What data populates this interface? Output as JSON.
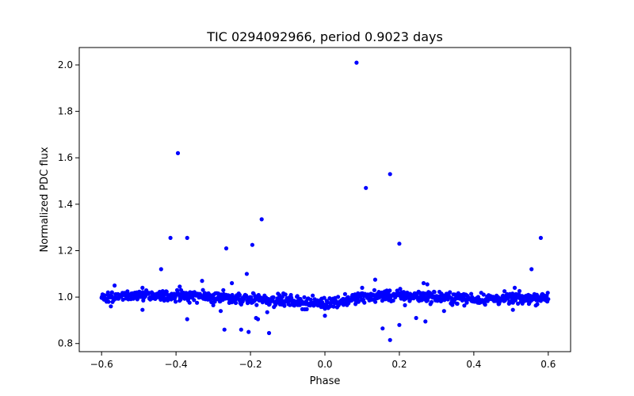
{
  "chart_data": {
    "type": "scatter",
    "title": "TIC 0294092966, period 0.9023 days",
    "xlabel": "Phase",
    "ylabel": "Normalized PDC flux",
    "xlim": [
      -0.66,
      0.66
    ],
    "ylim": [
      0.765,
      2.075
    ],
    "xticks": [
      -0.6,
      -0.4,
      -0.2,
      0.0,
      0.2,
      0.4,
      0.6
    ],
    "xtick_labels": [
      "−0.6",
      "−0.4",
      "−0.2",
      "0.0",
      "0.2",
      "0.4",
      "0.6"
    ],
    "yticks": [
      0.8,
      1.0,
      1.2,
      1.4,
      1.6,
      1.8,
      2.0
    ],
    "ytick_labels": [
      "0.8",
      "1.0",
      "1.2",
      "1.4",
      "1.6",
      "1.8",
      "2.0"
    ],
    "marker_color": "#0000ff",
    "grid": false,
    "baseline": {
      "x_range": [
        -0.6,
        0.6
      ],
      "level": 1.0,
      "scatter": 0.012,
      "n_points": 900,
      "dip_center": 0.0,
      "dip_depth": 0.025,
      "dip_width": 0.1
    },
    "outliers": [
      {
        "x": 0.085,
        "y": 2.01
      },
      {
        "x": -0.395,
        "y": 1.62
      },
      {
        "x": 0.11,
        "y": 1.47
      },
      {
        "x": 0.175,
        "y": 1.53
      },
      {
        "x": -0.17,
        "y": 1.335
      },
      {
        "x": -0.415,
        "y": 1.255
      },
      {
        "x": -0.37,
        "y": 1.255
      },
      {
        "x": -0.195,
        "y": 1.225
      },
      {
        "x": -0.265,
        "y": 1.21
      },
      {
        "x": 0.2,
        "y": 1.23
      },
      {
        "x": 0.58,
        "y": 1.255
      },
      {
        "x": -0.44,
        "y": 1.12
      },
      {
        "x": 0.555,
        "y": 1.12
      },
      {
        "x": -0.21,
        "y": 1.1
      },
      {
        "x": 0.135,
        "y": 1.075
      },
      {
        "x": -0.33,
        "y": 1.07
      },
      {
        "x": -0.25,
        "y": 1.06
      },
      {
        "x": 0.265,
        "y": 1.06
      },
      {
        "x": 0.275,
        "y": 1.055
      },
      {
        "x": -0.565,
        "y": 1.05
      },
      {
        "x": -0.39,
        "y": 1.045
      },
      {
        "x": 0.1,
        "y": 1.04
      },
      {
        "x": 0.51,
        "y": 1.04
      },
      {
        "x": -0.49,
        "y": 1.04
      },
      {
        "x": -0.37,
        "y": 0.905
      },
      {
        "x": -0.27,
        "y": 0.86
      },
      {
        "x": -0.225,
        "y": 0.86
      },
      {
        "x": -0.205,
        "y": 0.85
      },
      {
        "x": -0.18,
        "y": 0.905
      },
      {
        "x": -0.185,
        "y": 0.91
      },
      {
        "x": -0.15,
        "y": 0.845
      },
      {
        "x": -0.155,
        "y": 0.935
      },
      {
        "x": -0.28,
        "y": 0.94
      },
      {
        "x": 0.155,
        "y": 0.865
      },
      {
        "x": 0.175,
        "y": 0.815
      },
      {
        "x": 0.2,
        "y": 0.88
      },
      {
        "x": 0.245,
        "y": 0.91
      },
      {
        "x": 0.27,
        "y": 0.895
      },
      {
        "x": 0.32,
        "y": 0.94
      },
      {
        "x": -0.575,
        "y": 0.96
      },
      {
        "x": -0.49,
        "y": 0.945
      },
      {
        "x": 0.0,
        "y": 0.92
      },
      {
        "x": 0.505,
        "y": 0.945
      },
      {
        "x": 0.215,
        "y": 0.965
      },
      {
        "x": -0.3,
        "y": 0.965
      },
      {
        "x": 0.0,
        "y": 0.95
      }
    ]
  }
}
